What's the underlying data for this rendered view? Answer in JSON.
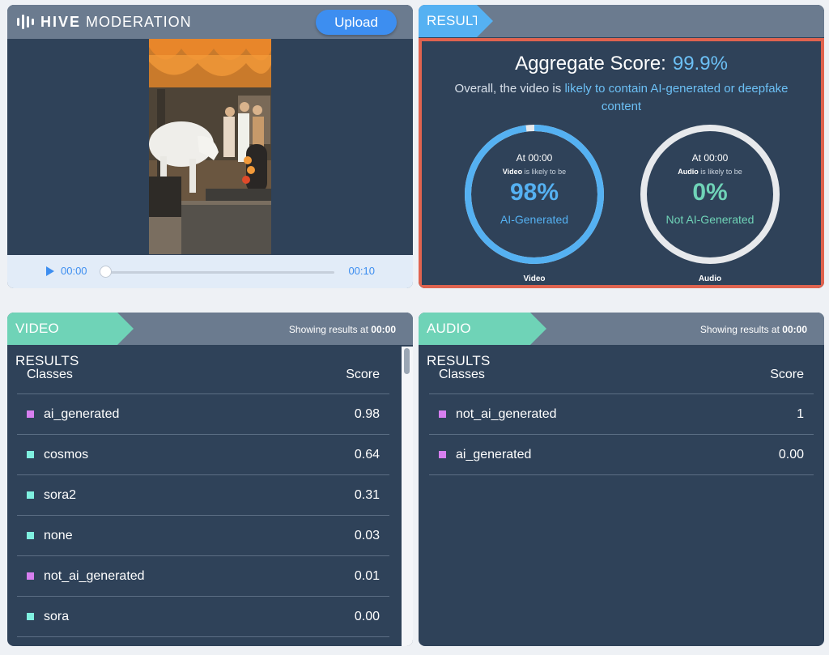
{
  "player": {
    "logo_brand": "HIVE",
    "logo_product": "MODERATION",
    "upload_label": "Upload",
    "time_current": "00:00",
    "time_total": "00:10",
    "progress": 0
  },
  "result": {
    "tab_label": "RESULT",
    "aggregate_label": "Aggregate Score:",
    "aggregate_value": "99.9%",
    "overall_prefix": "Overall, the video is",
    "overall_highlight": "likely to contain AI-generated or deepfake content",
    "gauges": [
      {
        "at": "At 00:00",
        "subject": "Video",
        "likely": "is likely to be",
        "percent": "98%",
        "value": 0.98,
        "label": "AI-Generated",
        "name": "Video",
        "color": "#55b1f2"
      },
      {
        "at": "At 00:00",
        "subject": "Audio",
        "likely": "is likely to be",
        "percent": "0%",
        "value": 0.0,
        "label": "Not AI-Generated",
        "name": "Audio",
        "color": "#6fd3b7"
      }
    ]
  },
  "video_results": {
    "tab_label": "VIDEO RESULTS",
    "showing_prefix": "Showing results at",
    "showing_time": "00:00",
    "col_classes": "Classes",
    "col_score": "Score",
    "rows": [
      {
        "cls": "ai_generated",
        "score": "0.98",
        "color": "#d77ff0"
      },
      {
        "cls": "cosmos",
        "score": "0.64",
        "color": "#7ff0e0"
      },
      {
        "cls": "sora2",
        "score": "0.31",
        "color": "#7ff0e0"
      },
      {
        "cls": "none",
        "score": "0.03",
        "color": "#7ff0e0"
      },
      {
        "cls": "not_ai_generated",
        "score": "0.01",
        "color": "#d77ff0"
      },
      {
        "cls": "sora",
        "score": "0.00",
        "color": "#7ff0e0"
      }
    ]
  },
  "audio_results": {
    "tab_label": "AUDIO RESULTS",
    "showing_prefix": "Showing results at",
    "showing_time": "00:00",
    "col_classes": "Classes",
    "col_score": "Score",
    "rows": [
      {
        "cls": "not_ai_generated",
        "score": "1",
        "color": "#d77ff0"
      },
      {
        "cls": "ai_generated",
        "score": "0.00",
        "color": "#d77ff0"
      }
    ]
  },
  "colors": {
    "panel": "#2f4259",
    "header": "#6b7b8f",
    "accent_blue": "#55b1f2",
    "accent_green": "#6fd3b7",
    "result_border": "#e0634f"
  }
}
